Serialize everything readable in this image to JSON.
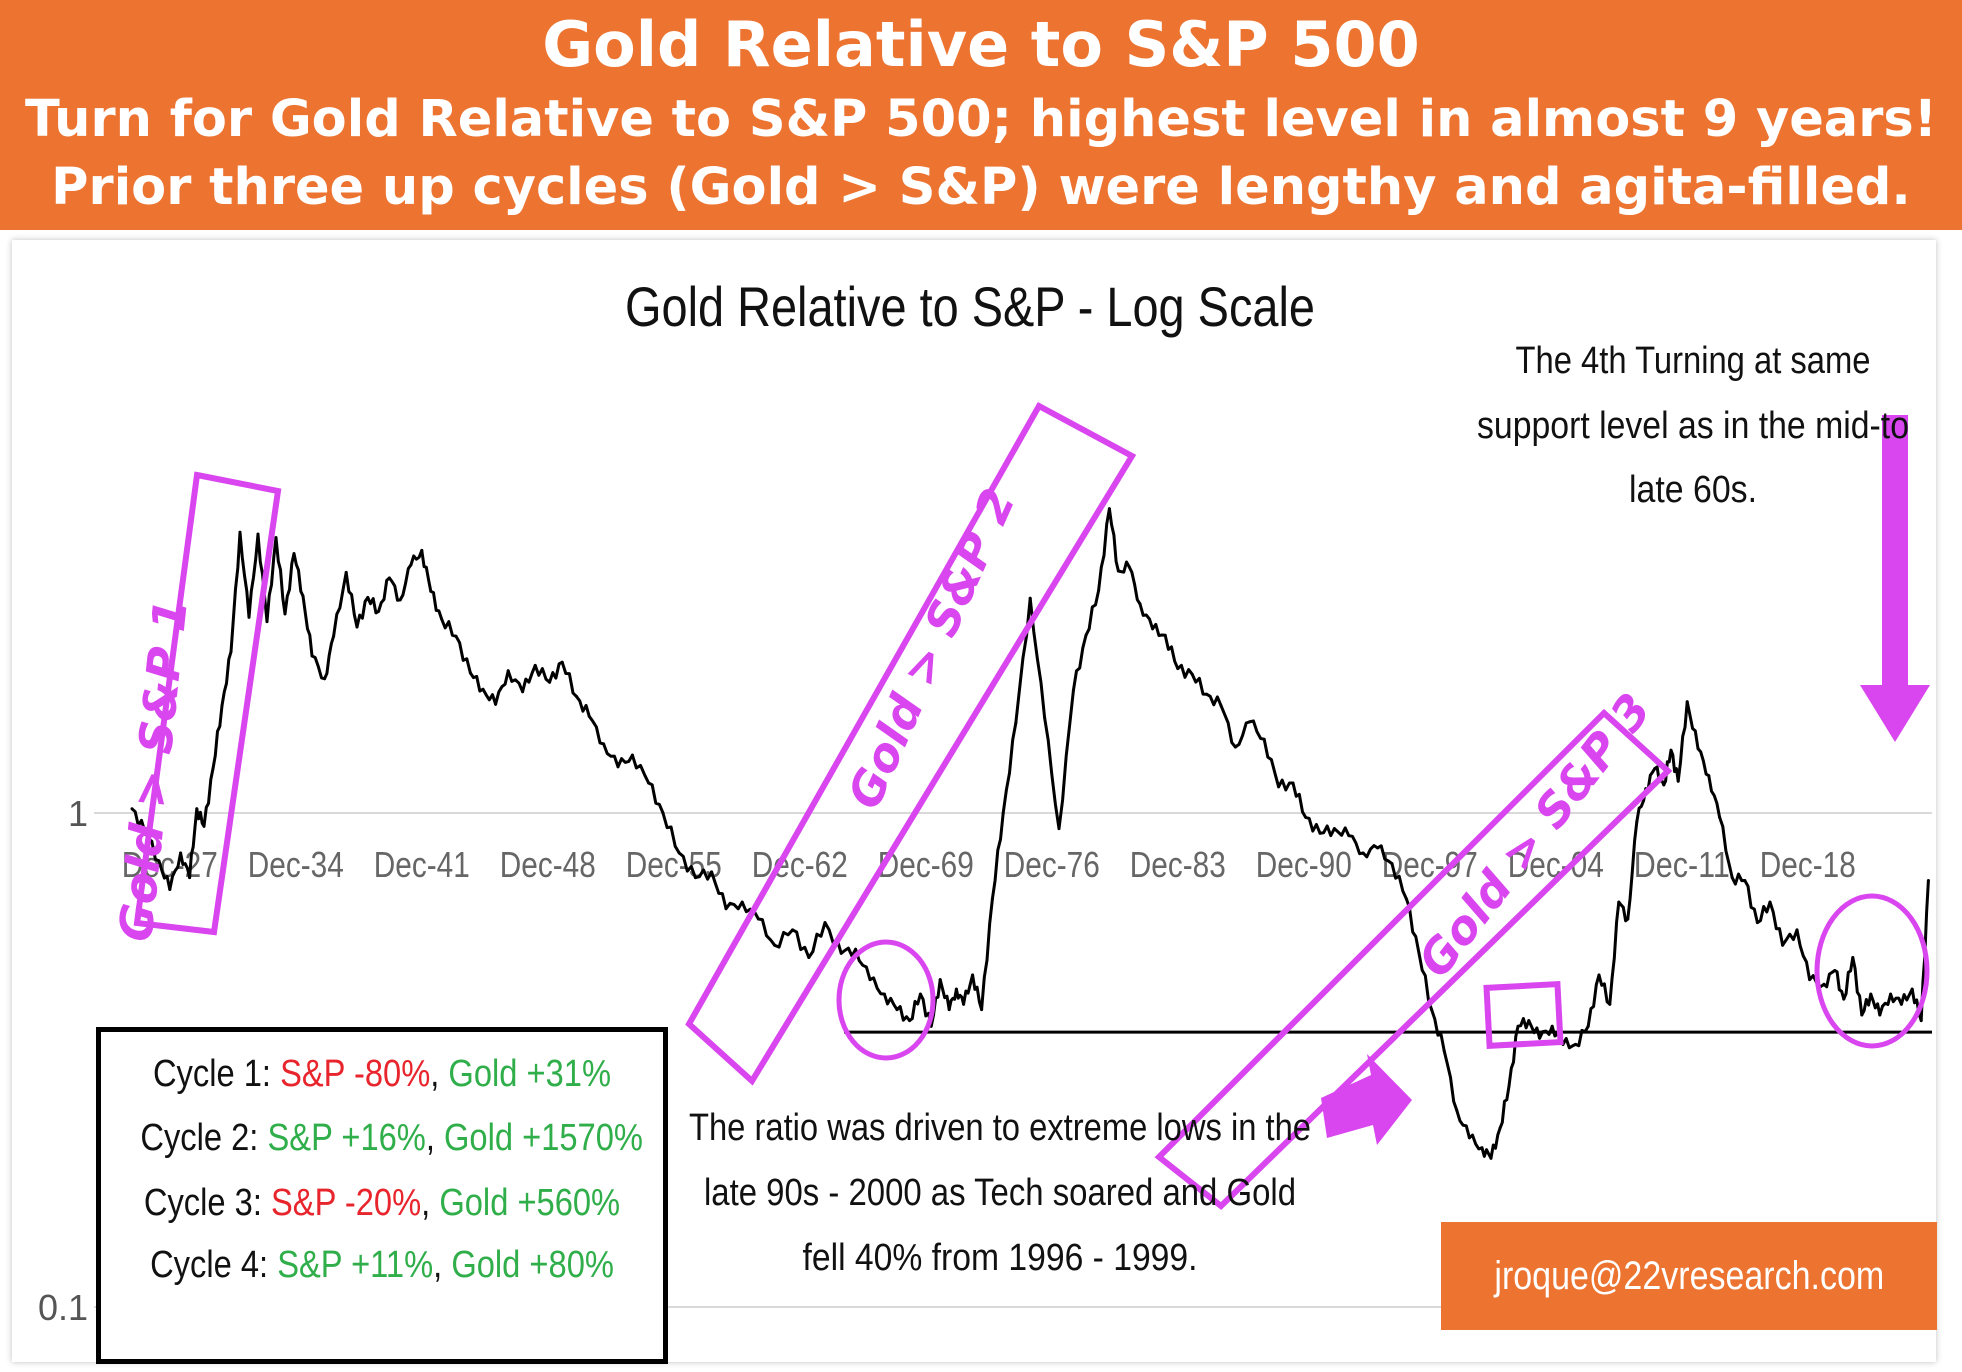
{
  "banner": {
    "title": "Gold Relative to S&P 500",
    "subtitle_line1": "Turn for Gold Relative to S&P 500; highest level in almost 9 years!",
    "subtitle_line2": "Prior three up cycles (Gold > S&P) were lengthy and agita-filled."
  },
  "colors": {
    "banner": "#ec7330",
    "series": "#000000",
    "annotation": "#d946ef",
    "negative": "#e8252d",
    "positive": "#2fae4a"
  },
  "chart_data": {
    "type": "line",
    "title": "Gold Relative to S&P - Log Scale",
    "scale": "log",
    "ylim": [
      0.1,
      4
    ],
    "y_ticks": [
      {
        "value": 1,
        "label": "1"
      },
      {
        "value": 0.1,
        "label": "0.1"
      }
    ],
    "x_tick_labels": [
      "Dec-27",
      "Dec-34",
      "Dec-41",
      "Dec-48",
      "Dec-55",
      "Dec-62",
      "Dec-69",
      "Dec-76",
      "Dec-83",
      "Dec-90",
      "Dec-97",
      "Dec-04",
      "Dec-11",
      "Dec-18"
    ],
    "xlim": [
      1925.8,
      2025.8
    ],
    "grid": true,
    "support_level": 0.36,
    "x": [
      1925.8,
      1926.5,
      1927.3,
      1927.9,
      1928.5,
      1929.0,
      1929.4,
      1929.8,
      1930.3,
      1930.8,
      1931.3,
      1931.8,
      1932.3,
      1932.8,
      1933.3,
      1933.8,
      1934.3,
      1934.8,
      1935.3,
      1935.8,
      1936.5,
      1937.0,
      1937.7,
      1938.3,
      1938.9,
      1939.5,
      1940.1,
      1940.7,
      1941.3,
      1941.9,
      1942.4,
      1943.0,
      1943.8,
      1944.6,
      1945.3,
      1946.0,
      1946.7,
      1947.5,
      1948.2,
      1949.0,
      1949.7,
      1950.5,
      1951.2,
      1952.0,
      1952.8,
      1953.6,
      1954.5,
      1955.3,
      1956.2,
      1957.1,
      1958.0,
      1958.8,
      1959.7,
      1960.6,
      1961.5,
      1962.5,
      1963.4,
      1964.3,
      1965.2,
      1966.0,
      1966.8,
      1967.6,
      1968.3,
      1969.0,
      1969.6,
      1970.2,
      1970.7,
      1971.2,
      1971.6,
      1972.0,
      1972.5,
      1973.0,
      1973.6,
      1974.2,
      1974.9,
      1975.7,
      1976.5,
      1977.3,
      1978.1,
      1978.8,
      1979.5,
      1980.1,
      1980.6,
      1981.2,
      1981.8,
      1982.5,
      1983.2,
      1983.9,
      1984.7,
      1985.5,
      1986.3,
      1987.1,
      1987.9,
      1988.7,
      1989.5,
      1990.3,
      1991.0,
      1991.8,
      1992.6,
      1993.4,
      1994.2,
      1995.0,
      1995.8,
      1996.6,
      1997.3,
      1998.0,
      1998.7,
      1999.4,
      2000.1,
      2000.8,
      2001.3,
      2001.8,
      2002.3,
      2002.8,
      2003.4,
      2004.0,
      2004.7,
      2005.3,
      2006.0,
      2006.7,
      2007.3,
      2007.9,
      2008.4,
      2008.9,
      2009.4,
      2009.9,
      2010.4,
      2010.9,
      2011.3,
      2011.7,
      2012.2,
      2012.8,
      2013.4,
      2014.0,
      2014.7,
      2015.4,
      2016.1,
      2016.8,
      2017.5,
      2018.3,
      2019.0,
      2019.8,
      2020.4,
      2020.9,
      2021.4,
      2021.9,
      2022.4,
      2022.9,
      2023.5,
      2024.1,
      2024.7,
      2025.2,
      2025.6
    ],
    "y": [
      1.02,
      0.92,
      0.8,
      0.7,
      0.83,
      0.74,
      1.02,
      0.94,
      1.23,
      1.65,
      2.12,
      3.7,
      2.49,
      3.67,
      2.44,
      3.61,
      2.53,
      3.35,
      2.75,
      2.08,
      1.87,
      2.28,
      3.07,
      2.38,
      2.73,
      2.56,
      2.99,
      2.7,
      3.18,
      3.4,
      2.81,
      2.47,
      2.28,
      1.92,
      1.78,
      1.66,
      1.94,
      1.76,
      1.99,
      1.84,
      2.02,
      1.72,
      1.57,
      1.38,
      1.24,
      1.31,
      1.15,
      1.0,
      0.83,
      0.74,
      0.76,
      0.64,
      0.66,
      0.61,
      0.54,
      0.58,
      0.51,
      0.6,
      0.52,
      0.53,
      0.46,
      0.43,
      0.4,
      0.38,
      0.43,
      0.37,
      0.46,
      0.4,
      0.44,
      0.41,
      0.47,
      0.4,
      0.67,
      1.0,
      1.52,
      2.72,
      1.56,
      0.93,
      1.77,
      2.29,
      2.82,
      4.13,
      3.09,
      3.15,
      2.65,
      2.36,
      2.29,
      1.96,
      1.91,
      1.74,
      1.65,
      1.36,
      1.53,
      1.41,
      1.13,
      1.15,
      0.98,
      0.91,
      0.93,
      0.9,
      0.83,
      0.85,
      0.79,
      0.67,
      0.52,
      0.4,
      0.33,
      0.25,
      0.22,
      0.21,
      0.2,
      0.23,
      0.28,
      0.37,
      0.38,
      0.35,
      0.37,
      0.34,
      0.34,
      0.37,
      0.47,
      0.41,
      0.66,
      0.61,
      0.96,
      1.12,
      1.23,
      1.14,
      1.34,
      1.16,
      1.68,
      1.35,
      1.19,
      0.98,
      0.74,
      0.73,
      0.6,
      0.66,
      0.54,
      0.58,
      0.46,
      0.45,
      0.48,
      0.42,
      0.51,
      0.39,
      0.43,
      0.39,
      0.43,
      0.41,
      0.44,
      0.38,
      0.73
    ]
  },
  "annotations": {
    "cycle1_label": "Gold > S&P 1",
    "cycle2_label": "Gold > S&P 2",
    "cycle3_label": "Gold > S&P 3",
    "fourth_turning": [
      "The 4th Turning  at same",
      "support level  as in the mid-to",
      "late 60s."
    ],
    "ratio_note": [
      "The ratio was driven to extreme lows in the",
      "late 90s  - 2000 as Tech soared and Gold",
      "fell 40% from 1996 - 1999."
    ]
  },
  "cycles": [
    {
      "label": "Cycle 1:",
      "sp": "S&P -80%",
      "sp_sign": "negative",
      "gold": "Gold +31%",
      "gold_sign": "positive"
    },
    {
      "label": "Cycle 2:",
      "sp": "S&P +16%",
      "sp_sign": "positive",
      "gold": "Gold +1570%",
      "gold_sign": "positive"
    },
    {
      "label": "Cycle 3:",
      "sp": "S&P -20%",
      "sp_sign": "negative",
      "gold": "Gold +560%",
      "gold_sign": "positive"
    },
    {
      "label": "Cycle 4:",
      "sp": "S&P +11%",
      "sp_sign": "positive",
      "gold": "Gold +80%",
      "gold_sign": "positive"
    }
  ],
  "email": "jroque@22vresearch.com"
}
